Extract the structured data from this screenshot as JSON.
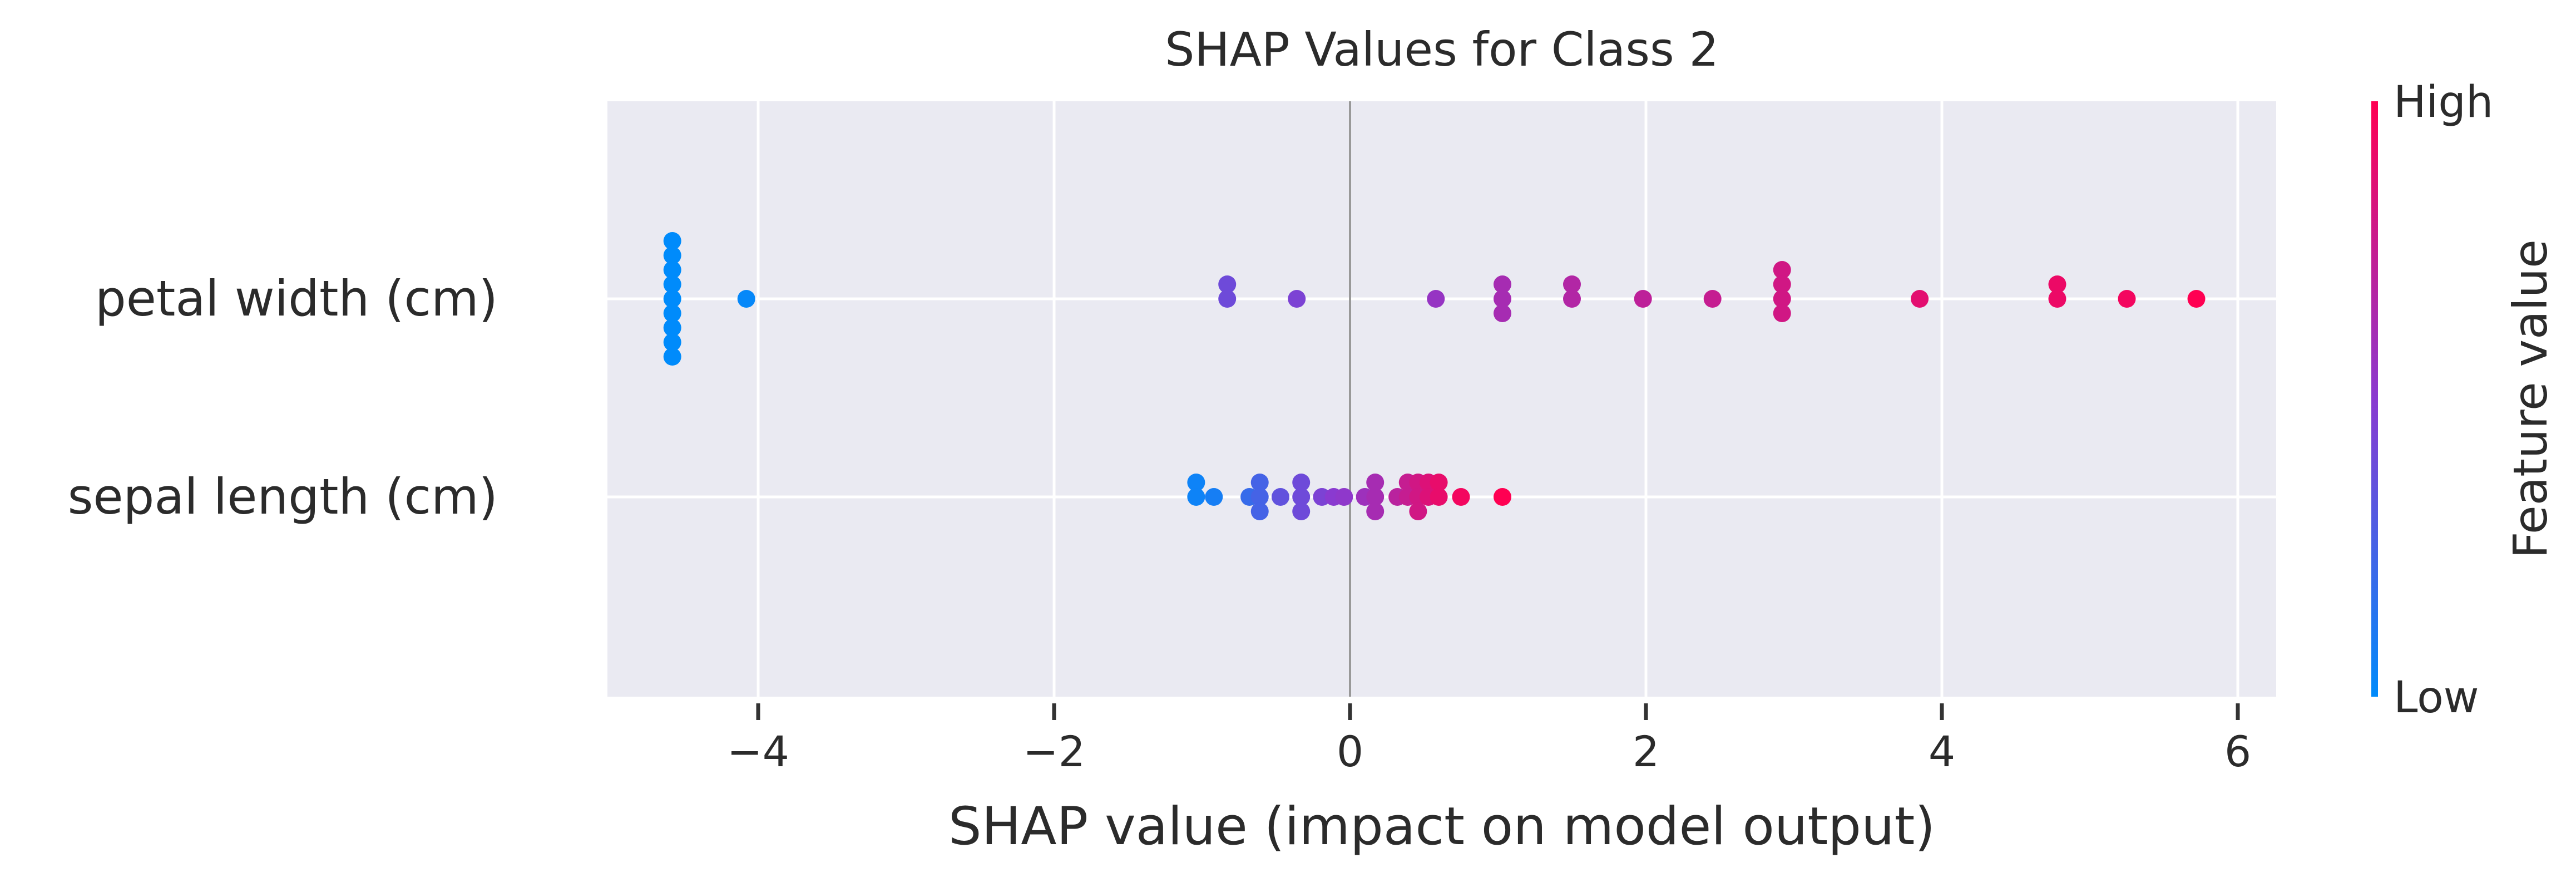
{
  "chart_data": {
    "type": "scatter",
    "subtype": "shap-beeswarm-summary",
    "title": "SHAP Values for Class 2",
    "xlabel": "SHAP value (impact on model output)",
    "ylabel": "",
    "xlim": [
      -5.1,
      6.2
    ],
    "xticks": [
      -4,
      -2,
      0,
      2,
      4,
      6
    ],
    "xtick_labels": [
      "−4",
      "−2",
      "0",
      "2",
      "4",
      "6"
    ],
    "grid": true,
    "background": "#eaeaf2",
    "features": [
      "petal width (cm)",
      "sepal length (cm)"
    ],
    "colorbar": {
      "label": "Feature value",
      "high_label": "High",
      "low_label": "Low",
      "low_color": "#008bfb",
      "high_color": "#ff0052",
      "placement": "right"
    },
    "series": [
      {
        "feature": "petal width (cm)",
        "points": [
          {
            "x": -4.58,
            "jitter": 4,
            "c": 0.0
          },
          {
            "x": -4.58,
            "jitter": 3,
            "c": 0.0
          },
          {
            "x": -4.58,
            "jitter": 2,
            "c": 0.0
          },
          {
            "x": -4.58,
            "jitter": 1,
            "c": 0.0
          },
          {
            "x": -4.58,
            "jitter": 0,
            "c": 0.0
          },
          {
            "x": -4.58,
            "jitter": -1,
            "c": 0.0
          },
          {
            "x": -4.58,
            "jitter": -2,
            "c": 0.0
          },
          {
            "x": -4.58,
            "jitter": -3,
            "c": 0.0
          },
          {
            "x": -4.58,
            "jitter": -4,
            "c": 0.0
          },
          {
            "x": -4.08,
            "jitter": 0,
            "c": 0.02
          },
          {
            "x": -0.83,
            "jitter": 1,
            "c": 0.4
          },
          {
            "x": -0.83,
            "jitter": 0,
            "c": 0.4
          },
          {
            "x": -0.36,
            "jitter": 0,
            "c": 0.45
          },
          {
            "x": 0.58,
            "jitter": 0,
            "c": 0.55
          },
          {
            "x": 1.03,
            "jitter": 1,
            "c": 0.62
          },
          {
            "x": 1.03,
            "jitter": 0,
            "c": 0.62
          },
          {
            "x": 1.03,
            "jitter": -1,
            "c": 0.62
          },
          {
            "x": 1.5,
            "jitter": 1,
            "c": 0.67
          },
          {
            "x": 1.5,
            "jitter": 0,
            "c": 0.67
          },
          {
            "x": 1.98,
            "jitter": 0,
            "c": 0.72
          },
          {
            "x": 2.45,
            "jitter": 0,
            "c": 0.75
          },
          {
            "x": 2.92,
            "jitter": 2,
            "c": 0.8
          },
          {
            "x": 2.92,
            "jitter": 1,
            "c": 0.8
          },
          {
            "x": 2.92,
            "jitter": 0,
            "c": 0.8
          },
          {
            "x": 2.92,
            "jitter": -1,
            "c": 0.8
          },
          {
            "x": 3.85,
            "jitter": 0,
            "c": 0.88
          },
          {
            "x": 4.78,
            "jitter": 1,
            "c": 0.92
          },
          {
            "x": 4.78,
            "jitter": 0,
            "c": 0.92
          },
          {
            "x": 5.25,
            "jitter": 0,
            "c": 0.95
          },
          {
            "x": 5.72,
            "jitter": 0,
            "c": 1.0
          }
        ]
      },
      {
        "feature": "sepal length (cm)",
        "points": [
          {
            "x": -1.04,
            "jitter": 1,
            "c": 0.05
          },
          {
            "x": -1.04,
            "jitter": 0,
            "c": 0.05
          },
          {
            "x": -0.92,
            "jitter": 0,
            "c": 0.08
          },
          {
            "x": -0.68,
            "jitter": 0,
            "c": 0.2
          },
          {
            "x": -0.61,
            "jitter": 1,
            "c": 0.25
          },
          {
            "x": -0.61,
            "jitter": 0,
            "c": 0.25
          },
          {
            "x": -0.61,
            "jitter": -1,
            "c": 0.25
          },
          {
            "x": -0.47,
            "jitter": 0,
            "c": 0.35
          },
          {
            "x": -0.33,
            "jitter": 1,
            "c": 0.4
          },
          {
            "x": -0.33,
            "jitter": 0,
            "c": 0.4
          },
          {
            "x": -0.33,
            "jitter": -1,
            "c": 0.4
          },
          {
            "x": -0.19,
            "jitter": 0,
            "c": 0.45
          },
          {
            "x": -0.11,
            "jitter": 0,
            "c": 0.5
          },
          {
            "x": -0.04,
            "jitter": 0,
            "c": 0.52
          },
          {
            "x": 0.1,
            "jitter": 0,
            "c": 0.58
          },
          {
            "x": 0.17,
            "jitter": 1,
            "c": 0.62
          },
          {
            "x": 0.17,
            "jitter": 0,
            "c": 0.62
          },
          {
            "x": 0.17,
            "jitter": -1,
            "c": 0.62
          },
          {
            "x": 0.32,
            "jitter": 0,
            "c": 0.7
          },
          {
            "x": 0.39,
            "jitter": 1,
            "c": 0.75
          },
          {
            "x": 0.39,
            "jitter": 0,
            "c": 0.75
          },
          {
            "x": 0.46,
            "jitter": 1,
            "c": 0.8
          },
          {
            "x": 0.46,
            "jitter": 0,
            "c": 0.8
          },
          {
            "x": 0.46,
            "jitter": -1,
            "c": 0.8
          },
          {
            "x": 0.53,
            "jitter": 1,
            "c": 0.85
          },
          {
            "x": 0.53,
            "jitter": 0,
            "c": 0.85
          },
          {
            "x": 0.6,
            "jitter": 1,
            "c": 0.9
          },
          {
            "x": 0.6,
            "jitter": 0,
            "c": 0.9
          },
          {
            "x": 0.75,
            "jitter": 0,
            "c": 0.95
          },
          {
            "x": 1.03,
            "jitter": 0,
            "c": 1.0
          }
        ]
      }
    ]
  }
}
